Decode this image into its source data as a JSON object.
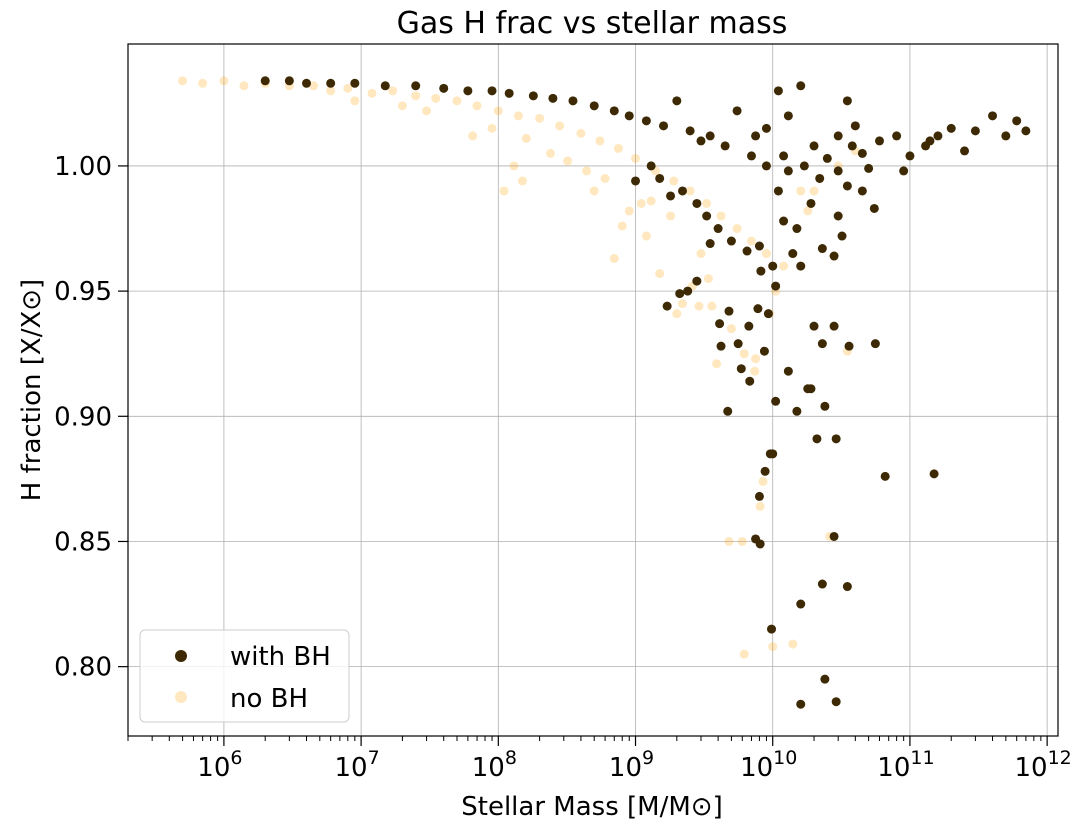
{
  "chart_data": {
    "type": "scatter",
    "title": "Gas H frac vs stellar mass",
    "xlabel": "Stellar Mass [M/M⊙]",
    "ylabel": "H fraction [X/X⊙]",
    "xscale": "log",
    "xlim": [
      200000.0,
      1200000000000.0
    ],
    "ylim": [
      0.7723,
      1.0487
    ],
    "grid": true,
    "legend_position": "lower-left",
    "x_ticks": [
      {
        "value": 1000000.0,
        "base": "10",
        "exp": "6"
      },
      {
        "value": 10000000.0,
        "base": "10",
        "exp": "7"
      },
      {
        "value": 100000000.0,
        "base": "10",
        "exp": "8"
      },
      {
        "value": 1000000000.0,
        "base": "10",
        "exp": "9"
      },
      {
        "value": 10000000000.0,
        "base": "10",
        "exp": "10"
      },
      {
        "value": 100000000000.0,
        "base": "10",
        "exp": "11"
      },
      {
        "value": 1000000000000.0,
        "base": "10",
        "exp": "12"
      }
    ],
    "y_ticks": [
      {
        "value": 0.8,
        "label": "0.80"
      },
      {
        "value": 0.85,
        "label": "0.85"
      },
      {
        "value": 0.9,
        "label": "0.90"
      },
      {
        "value": 0.95,
        "label": "0.95"
      },
      {
        "value": 1.0,
        "label": "1.00"
      }
    ],
    "series": [
      {
        "name": "with BH",
        "color": "#3d2a05",
        "opacity": 1.0,
        "points": [
          [
            2000000.0,
            1.034
          ],
          [
            3000000.0,
            1.034
          ],
          [
            4000000.0,
            1.033
          ],
          [
            6000000.0,
            1.033
          ],
          [
            9000000.0,
            1.033
          ],
          [
            15000000.0,
            1.032
          ],
          [
            25000000.0,
            1.032
          ],
          [
            40000000.0,
            1.031
          ],
          [
            60000000.0,
            1.03
          ],
          [
            90000000.0,
            1.03
          ],
          [
            120000000.0,
            1.029
          ],
          [
            180000000.0,
            1.028
          ],
          [
            250000000.0,
            1.027
          ],
          [
            350000000.0,
            1.026
          ],
          [
            500000000.0,
            1.024
          ],
          [
            700000000.0,
            1.022
          ],
          [
            900000000.0,
            1.02
          ],
          [
            1200000000.0,
            1.018
          ],
          [
            1600000000.0,
            1.016
          ],
          [
            2000000000.0,
            1.026
          ],
          [
            2500000000.0,
            1.014
          ],
          [
            3000000000.0,
            1.01
          ],
          [
            3500000000.0,
            1.012
          ],
          [
            4500000000.0,
            1.008
          ],
          [
            5500000000.0,
            1.022
          ],
          [
            7000000000.0,
            1.004
          ],
          [
            9000000000.0,
            1.0
          ],
          [
            11000000000.0,
            1.03
          ],
          [
            13000000000.0,
            0.998
          ],
          [
            16000000000.0,
            1.032
          ],
          [
            20000000000.0,
            1.008
          ],
          [
            25000000000.0,
            1.003
          ],
          [
            30000000000.0,
            1.012
          ],
          [
            35000000000.0,
            1.026
          ],
          [
            45000000000.0,
            1.005
          ],
          [
            60000000000.0,
            1.01
          ],
          [
            80000000000.0,
            1.012
          ],
          [
            100000000000.0,
            1.004
          ],
          [
            130000000000.0,
            1.008
          ],
          [
            160000000000.0,
            1.012
          ],
          [
            200000000000.0,
            1.015
          ],
          [
            250000000000.0,
            1.006
          ],
          [
            300000000000.0,
            1.014
          ],
          [
            400000000000.0,
            1.02
          ],
          [
            500000000000.0,
            1.012
          ],
          [
            600000000000.0,
            1.018
          ],
          [
            700000000000.0,
            1.014
          ],
          [
            1300000000.0,
            1.0
          ],
          [
            1500000000.0,
            0.995
          ],
          [
            1800000000.0,
            0.988
          ],
          [
            2200000000.0,
            0.99
          ],
          [
            2800000000.0,
            0.985
          ],
          [
            3300000000.0,
            0.98
          ],
          [
            4000000000.0,
            0.975
          ],
          [
            5000000000.0,
            0.97
          ],
          [
            6500000000.0,
            0.966
          ],
          [
            8000000000.0,
            0.968
          ],
          [
            10000000000.0,
            0.96
          ],
          [
            12000000000.0,
            0.978
          ],
          [
            15000000000.0,
            0.975
          ],
          [
            19000000000.0,
            0.985
          ],
          [
            23000000000.0,
            0.967
          ],
          [
            28000000000.0,
            0.964
          ],
          [
            35000000000.0,
            0.992
          ],
          [
            45000000000.0,
            0.99
          ],
          [
            55000000000.0,
            0.983
          ],
          [
            1000000000.0,
            0.994
          ],
          [
            3500000000.0,
            0.969
          ],
          [
            2100000000.0,
            0.949
          ],
          [
            1700000000.0,
            0.944
          ],
          [
            2400000000.0,
            0.95
          ],
          [
            2800000000.0,
            0.954
          ],
          [
            4100000000.0,
            0.937
          ],
          [
            4800000000.0,
            0.942
          ],
          [
            5600000000.0,
            0.929
          ],
          [
            6700000000.0,
            0.936
          ],
          [
            7800000000.0,
            0.943
          ],
          [
            9300000000.0,
            0.941
          ],
          [
            8200000000.0,
            0.958
          ],
          [
            10500000000.0,
            0.952
          ],
          [
            14000000000.0,
            0.965
          ],
          [
            16000000000.0,
            0.96
          ],
          [
            4200000000.0,
            0.928
          ],
          [
            5900000000.0,
            0.919
          ],
          [
            6800000000.0,
            0.914
          ],
          [
            8700000000.0,
            0.926
          ],
          [
            20000000000.0,
            0.936
          ],
          [
            23000000000.0,
            0.929
          ],
          [
            28000000000.0,
            0.936
          ],
          [
            36000000000.0,
            0.928
          ],
          [
            56000000000.0,
            0.929
          ],
          [
            13000000000.0,
            0.918
          ],
          [
            18000000000.0,
            0.911
          ],
          [
            4700000000.0,
            0.902
          ],
          [
            10500000000.0,
            0.906
          ],
          [
            15000000000.0,
            0.902
          ],
          [
            24000000000.0,
            0.904
          ],
          [
            21000000000.0,
            0.891
          ],
          [
            29000000000.0,
            0.891
          ],
          [
            9600000000.0,
            0.885
          ],
          [
            10000000000.0,
            0.885
          ],
          [
            8800000000.0,
            0.878
          ],
          [
            66000000000.0,
            0.876
          ],
          [
            150000000000.0,
            0.877
          ],
          [
            8000000000.0,
            0.868
          ],
          [
            7500000000.0,
            0.851
          ],
          [
            8100000000.0,
            0.849
          ],
          [
            28000000000.0,
            0.852
          ],
          [
            23000000000.0,
            0.833
          ],
          [
            35000000000.0,
            0.832
          ],
          [
            16000000000.0,
            0.825
          ],
          [
            9800000000.0,
            0.815
          ],
          [
            24000000000.0,
            0.795
          ],
          [
            16000000000.0,
            0.785
          ],
          [
            29000000000.0,
            0.786
          ],
          [
            19000000000.0,
            0.911
          ],
          [
            11000000000.0,
            0.99
          ],
          [
            13000000000.0,
            1.02
          ],
          [
            7500000000.0,
            1.012
          ],
          [
            9000000000.0,
            1.015
          ],
          [
            12000000000.0,
            1.004
          ],
          [
            17000000000.0,
            1.0
          ],
          [
            22000000000.0,
            0.995
          ],
          [
            30000000000.0,
            0.998
          ],
          [
            40000000000.0,
            1.016
          ],
          [
            50000000000.0,
            0.999
          ],
          [
            38000000000.0,
            1.008
          ],
          [
            140000000000.0,
            1.01
          ],
          [
            90000000000.0,
            0.998
          ],
          [
            30000000000.0,
            0.98
          ],
          [
            32000000000.0,
            0.972
          ]
        ]
      },
      {
        "name": "no BH",
        "color": "#ffa500",
        "opacity": 0.25,
        "points": [
          [
            500000.0,
            1.034
          ],
          [
            700000.0,
            1.033
          ],
          [
            1000000.0,
            1.034
          ],
          [
            1400000.0,
            1.032
          ],
          [
            2000000.0,
            1.033
          ],
          [
            3000000.0,
            1.032
          ],
          [
            4500000.0,
            1.032
          ],
          [
            6000000.0,
            1.03
          ],
          [
            8000000.0,
            1.031
          ],
          [
            12000000.0,
            1.029
          ],
          [
            17000000.0,
            1.03
          ],
          [
            25000000.0,
            1.028
          ],
          [
            35000000.0,
            1.027
          ],
          [
            50000000.0,
            1.026
          ],
          [
            70000000.0,
            1.024
          ],
          [
            100000000.0,
            1.022
          ],
          [
            140000000.0,
            1.02
          ],
          [
            200000000.0,
            1.019
          ],
          [
            280000000.0,
            1.016
          ],
          [
            400000000.0,
            1.013
          ],
          [
            550000000.0,
            1.01
          ],
          [
            750000000.0,
            1.007
          ],
          [
            1000000000.0,
            1.003
          ],
          [
            1400000000.0,
            0.998
          ],
          [
            1900000000.0,
            0.994
          ],
          [
            2500000000.0,
            0.99
          ],
          [
            3300000000.0,
            0.985
          ],
          [
            4200000000.0,
            0.98
          ],
          [
            5500000000.0,
            0.975
          ],
          [
            7000000000.0,
            0.97
          ],
          [
            9000000000.0,
            0.965
          ],
          [
            12000000000.0,
            0.96
          ],
          [
            16000000000.0,
            0.99
          ],
          [
            22000000000.0,
            0.995
          ],
          [
            30000000000.0,
            1.0
          ],
          [
            40000000000.0,
            1.006
          ],
          [
            600000000.0,
            0.995
          ],
          [
            700000000.0,
            0.963
          ],
          [
            800000000.0,
            0.976
          ],
          [
            1100000000.0,
            0.985
          ],
          [
            1800000000.0,
            0.98
          ],
          [
            2200000000.0,
            0.945
          ],
          [
            2600000000.0,
            0.952
          ],
          [
            3000000000.0,
            0.965
          ],
          [
            3400000000.0,
            0.955
          ],
          [
            3900000000.0,
            0.921
          ],
          [
            5000000000.0,
            0.935
          ],
          [
            6200000000.0,
            0.925
          ],
          [
            7400000000.0,
            0.918
          ],
          [
            8100000000.0,
            0.864
          ],
          [
            8500000000.0,
            0.874
          ],
          [
            4800000000.0,
            0.85
          ],
          [
            6000000000.0,
            0.85
          ],
          [
            6200000000.0,
            0.805
          ],
          [
            10000000000.0,
            0.808
          ],
          [
            14000000000.0,
            0.809
          ],
          [
            26000000000.0,
            0.852
          ],
          [
            35000000000.0,
            0.926
          ],
          [
            3600000000.0,
            0.944
          ],
          [
            2000000000.0,
            0.941
          ],
          [
            1500000000.0,
            0.957
          ],
          [
            1200000000.0,
            0.972
          ],
          [
            900000000.0,
            0.982
          ],
          [
            500000000.0,
            0.99
          ],
          [
            130000000.0,
            1.0
          ],
          [
            160000000.0,
            1.011
          ],
          [
            240000000.0,
            1.005
          ],
          [
            320000000.0,
            1.002
          ],
          [
            440000000.0,
            0.998
          ],
          [
            65000000.0,
            1.012
          ],
          [
            90000000.0,
            1.015
          ],
          [
            30000000.0,
            1.022
          ],
          [
            20000000.0,
            1.024
          ],
          [
            9000000.0,
            1.026
          ],
          [
            110000000.0,
            0.99
          ],
          [
            150000000.0,
            0.994
          ],
          [
            1300000000.0,
            0.986
          ],
          [
            2900000000.0,
            0.944
          ],
          [
            10500000000.0,
            0.95
          ],
          [
            9500000000.0,
            0.941
          ],
          [
            7500000000.0,
            0.923
          ],
          [
            20000000000.0,
            0.99
          ],
          [
            18000000000.0,
            0.982
          ]
        ]
      }
    ]
  }
}
